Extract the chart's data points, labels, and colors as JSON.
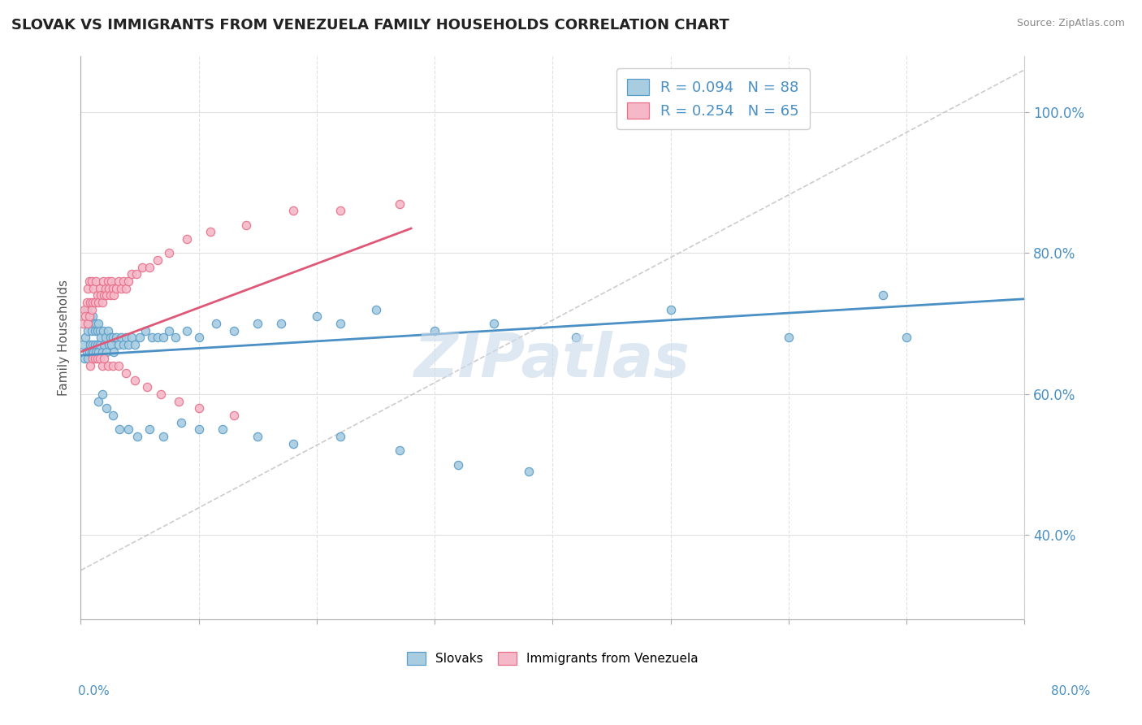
{
  "title": "SLOVAK VS IMMIGRANTS FROM VENEZUELA FAMILY HOUSEHOLDS CORRELATION CHART",
  "source": "Source: ZipAtlas.com",
  "ylabel": "Family Households",
  "right_yticks": [
    "40.0%",
    "60.0%",
    "80.0%",
    "100.0%"
  ],
  "right_ytick_vals": [
    0.4,
    0.6,
    0.8,
    1.0
  ],
  "legend_blue_label": "R = 0.094   N = 88",
  "legend_pink_label": "R = 0.254   N = 65",
  "legend_bottom_blue": "Slovaks",
  "legend_bottom_pink": "Immigrants from Venezuela",
  "blue_color": "#a8cce0",
  "pink_color": "#f4b8c8",
  "blue_dot_edge": "#5b9dc9",
  "pink_dot_edge": "#e8708a",
  "trend_blue": "#4a90c4",
  "trend_pink": "#e05878",
  "watermark": "ZIPatlas",
  "blue_scatter_x": [
    0.002,
    0.003,
    0.004,
    0.005,
    0.005,
    0.006,
    0.006,
    0.007,
    0.007,
    0.008,
    0.008,
    0.009,
    0.009,
    0.01,
    0.01,
    0.011,
    0.011,
    0.012,
    0.012,
    0.013,
    0.013,
    0.014,
    0.014,
    0.015,
    0.015,
    0.016,
    0.016,
    0.017,
    0.018,
    0.019,
    0.02,
    0.021,
    0.022,
    0.023,
    0.024,
    0.025,
    0.026,
    0.027,
    0.028,
    0.03,
    0.032,
    0.034,
    0.036,
    0.038,
    0.04,
    0.043,
    0.046,
    0.05,
    0.055,
    0.06,
    0.065,
    0.07,
    0.075,
    0.08,
    0.09,
    0.1,
    0.115,
    0.13,
    0.15,
    0.17,
    0.2,
    0.22,
    0.25,
    0.3,
    0.35,
    0.42,
    0.5,
    0.6,
    0.68,
    0.7,
    0.015,
    0.018,
    0.022,
    0.027,
    0.033,
    0.04,
    0.048,
    0.058,
    0.07,
    0.085,
    0.1,
    0.12,
    0.15,
    0.18,
    0.22,
    0.27,
    0.32,
    0.38
  ],
  "blue_scatter_y": [
    0.67,
    0.65,
    0.68,
    0.66,
    0.72,
    0.65,
    0.69,
    0.66,
    0.7,
    0.67,
    0.71,
    0.66,
    0.69,
    0.67,
    0.71,
    0.66,
    0.7,
    0.67,
    0.69,
    0.66,
    0.7,
    0.67,
    0.69,
    0.66,
    0.7,
    0.67,
    0.69,
    0.68,
    0.66,
    0.69,
    0.67,
    0.68,
    0.66,
    0.69,
    0.67,
    0.68,
    0.67,
    0.68,
    0.66,
    0.68,
    0.67,
    0.68,
    0.67,
    0.68,
    0.67,
    0.68,
    0.67,
    0.68,
    0.69,
    0.68,
    0.68,
    0.68,
    0.69,
    0.68,
    0.69,
    0.68,
    0.7,
    0.69,
    0.7,
    0.7,
    0.71,
    0.7,
    0.72,
    0.69,
    0.7,
    0.68,
    0.72,
    0.68,
    0.74,
    0.68,
    0.59,
    0.6,
    0.58,
    0.57,
    0.55,
    0.55,
    0.54,
    0.55,
    0.54,
    0.56,
    0.55,
    0.55,
    0.54,
    0.53,
    0.54,
    0.52,
    0.5,
    0.49
  ],
  "pink_scatter_x": [
    0.002,
    0.003,
    0.004,
    0.005,
    0.006,
    0.006,
    0.007,
    0.007,
    0.008,
    0.009,
    0.009,
    0.01,
    0.011,
    0.012,
    0.013,
    0.014,
    0.015,
    0.016,
    0.017,
    0.018,
    0.019,
    0.02,
    0.021,
    0.022,
    0.023,
    0.024,
    0.025,
    0.026,
    0.027,
    0.028,
    0.03,
    0.032,
    0.034,
    0.036,
    0.038,
    0.04,
    0.043,
    0.047,
    0.052,
    0.058,
    0.065,
    0.075,
    0.09,
    0.11,
    0.14,
    0.18,
    0.22,
    0.27,
    0.008,
    0.01,
    0.012,
    0.014,
    0.016,
    0.018,
    0.02,
    0.023,
    0.027,
    0.032,
    0.038,
    0.046,
    0.056,
    0.068,
    0.083,
    0.1,
    0.13
  ],
  "pink_scatter_y": [
    0.7,
    0.72,
    0.71,
    0.73,
    0.7,
    0.75,
    0.71,
    0.76,
    0.73,
    0.72,
    0.76,
    0.73,
    0.75,
    0.73,
    0.76,
    0.74,
    0.73,
    0.75,
    0.74,
    0.73,
    0.76,
    0.74,
    0.75,
    0.74,
    0.76,
    0.75,
    0.74,
    0.76,
    0.75,
    0.74,
    0.75,
    0.76,
    0.75,
    0.76,
    0.75,
    0.76,
    0.77,
    0.77,
    0.78,
    0.78,
    0.79,
    0.8,
    0.82,
    0.83,
    0.84,
    0.86,
    0.86,
    0.87,
    0.64,
    0.65,
    0.65,
    0.65,
    0.65,
    0.64,
    0.65,
    0.64,
    0.64,
    0.64,
    0.63,
    0.62,
    0.61,
    0.6,
    0.59,
    0.58,
    0.57
  ],
  "xlim": [
    0.0,
    0.8
  ],
  "ylim": [
    0.28,
    1.08
  ],
  "blue_trend_x": [
    0.0,
    0.8
  ],
  "blue_trend_y": [
    0.655,
    0.735
  ],
  "pink_trend_x": [
    0.0,
    0.28
  ],
  "pink_trend_y": [
    0.66,
    0.835
  ],
  "dash_line_x": [
    0.0,
    0.8
  ],
  "dash_line_y": [
    0.35,
    1.06
  ]
}
